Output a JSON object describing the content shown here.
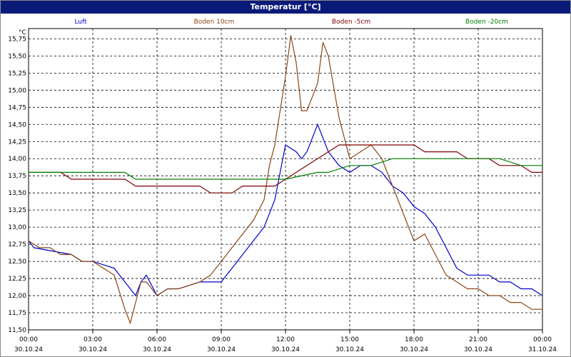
{
  "title": "Temperatur [°C]",
  "chart_data": {
    "type": "line",
    "title": "Temperatur [°C]",
    "ylabel": "°C",
    "xlabel": "",
    "ylim": [
      11.5,
      15.9
    ],
    "grid": true,
    "legend_position": "top",
    "yticks": [
      "15,75",
      "15,50",
      "15,25",
      "15,00",
      "14,75",
      "14,50",
      "14,25",
      "14,00",
      "13,75",
      "13,50",
      "13,25",
      "13,00",
      "12,75",
      "12,50",
      "12,25",
      "12,00",
      "11,75",
      "11,50"
    ],
    "xticks": [
      {
        "time": "00:00",
        "date": "30.10.24"
      },
      {
        "time": "03:00",
        "date": "30.10.24"
      },
      {
        "time": "06:00",
        "date": "30.10.24"
      },
      {
        "time": "09:00",
        "date": "30.10.24"
      },
      {
        "time": "12:00",
        "date": "30.10.24"
      },
      {
        "time": "15:00",
        "date": "30.10.24"
      },
      {
        "time": "18:00",
        "date": "30.10.24"
      },
      {
        "time": "21:00",
        "date": "30.10.24"
      },
      {
        "time": "00:00",
        "date": "31.10.24"
      }
    ],
    "x_unit": "hours since 30.10.24 00:00",
    "series": [
      {
        "name": "Luft",
        "color": "#0000cc",
        "x": [
          0,
          0.25,
          2,
          2.5,
          3,
          4,
          4.5,
          5,
          5.25,
          5.5,
          6,
          6.5,
          7,
          8,
          9,
          9.5,
          10,
          10.5,
          11,
          11.5,
          12,
          12.5,
          12.75,
          13,
          13.5,
          14,
          14.5,
          15,
          15.5,
          16,
          16.5,
          17,
          17.5,
          18,
          18.5,
          19,
          19.5,
          20,
          20.5,
          21,
          21.5,
          22,
          22.5,
          23,
          23.5,
          24
        ],
        "values": [
          12.8,
          12.7,
          12.6,
          12.5,
          12.5,
          12.4,
          12.2,
          12.0,
          12.2,
          12.3,
          12.0,
          12.1,
          12.1,
          12.2,
          12.2,
          12.4,
          12.6,
          12.8,
          13.0,
          13.4,
          14.2,
          14.1,
          14.0,
          14.1,
          14.5,
          14.1,
          13.9,
          13.8,
          13.9,
          13.9,
          13.8,
          13.6,
          13.5,
          13.3,
          13.2,
          13.0,
          12.7,
          12.4,
          12.3,
          12.3,
          12.3,
          12.2,
          12.2,
          12.1,
          12.1,
          12.0
        ]
      },
      {
        "name": "Boden 10cm",
        "color": "#8b4513",
        "x": [
          0,
          0.5,
          1,
          1.5,
          2,
          2.5,
          3,
          3.5,
          4,
          4.5,
          4.75,
          5,
          5.25,
          5.5,
          6,
          6.5,
          7,
          8,
          8.5,
          9,
          9.5,
          10,
          10.5,
          11,
          11.25,
          11.5,
          12,
          12.25,
          12.5,
          12.75,
          13,
          13.5,
          13.75,
          14,
          14.5,
          15,
          15.5,
          16,
          16.5,
          17,
          17.5,
          18,
          18.5,
          19,
          19.5,
          20,
          20.5,
          21,
          21.5,
          22,
          22.5,
          23,
          23.5,
          24
        ],
        "values": [
          12.8,
          12.7,
          12.7,
          12.6,
          12.6,
          12.5,
          12.5,
          12.4,
          12.3,
          11.8,
          11.6,
          11.9,
          12.2,
          12.2,
          12.0,
          12.1,
          12.1,
          12.2,
          12.3,
          12.5,
          12.7,
          12.9,
          13.1,
          13.4,
          13.9,
          14.2,
          15.2,
          15.8,
          15.4,
          14.7,
          14.7,
          15.1,
          15.7,
          15.5,
          14.6,
          14.0,
          14.1,
          14.2,
          14.0,
          13.6,
          13.2,
          12.8,
          12.9,
          12.6,
          12.3,
          12.2,
          12.1,
          12.1,
          12.0,
          12.0,
          11.9,
          11.9,
          11.8,
          11.8
        ]
      },
      {
        "name": "Boden -5cm",
        "color": "#800000",
        "x": [
          0,
          1.5,
          2,
          4.5,
          5,
          8,
          8.5,
          9.5,
          10,
          11.5,
          12,
          12.5,
          13,
          13.5,
          14,
          14.5,
          15,
          15.5,
          16,
          16.5,
          17,
          17.5,
          18,
          18.5,
          19,
          19.5,
          20,
          20.5,
          21,
          21.5,
          22,
          22.5,
          23,
          23.5,
          24
        ],
        "values": [
          13.8,
          13.8,
          13.7,
          13.7,
          13.6,
          13.6,
          13.5,
          13.5,
          13.6,
          13.6,
          13.7,
          13.8,
          13.9,
          14.0,
          14.1,
          14.2,
          14.2,
          14.2,
          14.2,
          14.2,
          14.2,
          14.2,
          14.2,
          14.1,
          14.1,
          14.1,
          14.1,
          14.0,
          14.0,
          14.0,
          13.9,
          13.9,
          13.9,
          13.8,
          13.8
        ]
      },
      {
        "name": "Boden -20cm",
        "color": "#008000",
        "x": [
          0,
          4.5,
          5,
          10,
          12,
          13.5,
          14,
          15,
          16,
          17,
          18,
          20,
          22,
          23,
          24
        ],
        "values": [
          13.8,
          13.8,
          13.7,
          13.7,
          13.7,
          13.8,
          13.8,
          13.9,
          13.9,
          14.0,
          14.0,
          14.0,
          14.0,
          13.9,
          13.9
        ]
      }
    ]
  }
}
